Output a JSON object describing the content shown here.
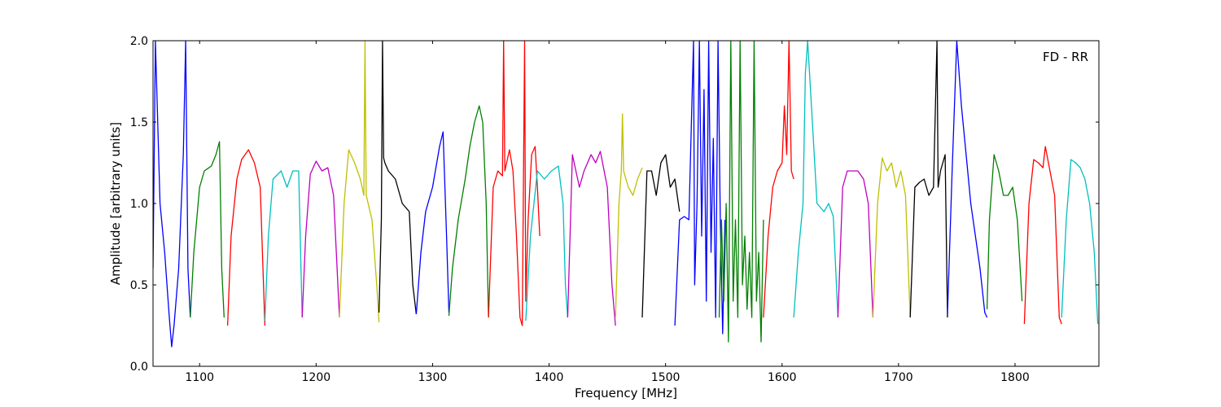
{
  "chart_data": {
    "type": "line",
    "title": "",
    "annotation": "FD - RR",
    "xlabel": "Frequency [MHz]",
    "ylabel": "Amplitude [arbitrary units]",
    "xlim": [
      1060,
      1872
    ],
    "ylim": [
      0.0,
      2.0
    ],
    "xticks": [
      1100,
      1200,
      1300,
      1400,
      1500,
      1600,
      1700,
      1800
    ],
    "yticks": [
      0.0,
      0.5,
      1.0,
      1.5,
      2.0
    ],
    "xtick_labels": [
      "1100",
      "1200",
      "1300",
      "1400",
      "1500",
      "1600",
      "1700",
      "1800"
    ],
    "ytick_labels": [
      "0.0",
      "0.5",
      "1.0",
      "1.5",
      "2.0"
    ],
    "grid": false,
    "colors": {
      "blue": "#0000ff",
      "green": "#008000",
      "red": "#ff0000",
      "cyan": "#00bfbf",
      "magenta": "#bf00bf",
      "yellow": "#bfbf00",
      "black": "#000000",
      "gray": "#bfbfbf"
    },
    "series": [
      {
        "color": "#0000ff",
        "x": [
          1060,
          1062,
          1066,
          1070,
          1074,
          1076,
          1078,
          1082,
          1086,
          1088,
          1090,
          1092
        ],
        "y": [
          0.6,
          2.0,
          1.0,
          0.7,
          0.3,
          0.12,
          0.25,
          0.6,
          1.3,
          2.0,
          0.6,
          0.3
        ]
      },
      {
        "color": "#008000",
        "x": [
          1092,
          1095,
          1100,
          1104,
          1110,
          1114,
          1117,
          1119,
          1121
        ],
        "y": [
          0.3,
          0.7,
          1.1,
          1.2,
          1.23,
          1.3,
          1.38,
          0.6,
          0.3
        ]
      },
      {
        "color": "#ff0000",
        "x": [
          1124,
          1127,
          1132,
          1136,
          1142,
          1147,
          1152,
          1156
        ],
        "y": [
          0.25,
          0.8,
          1.15,
          1.27,
          1.33,
          1.25,
          1.1,
          0.25
        ]
      },
      {
        "color": "#00bfbf",
        "x": [
          1156,
          1159,
          1163,
          1170,
          1175,
          1180,
          1185,
          1188
        ],
        "y": [
          0.28,
          0.8,
          1.15,
          1.2,
          1.1,
          1.2,
          1.2,
          0.3
        ]
      },
      {
        "color": "#bf00bf",
        "x": [
          1188,
          1191,
          1195,
          1200,
          1205,
          1210,
          1215,
          1220
        ],
        "y": [
          0.3,
          0.8,
          1.18,
          1.26,
          1.2,
          1.22,
          1.05,
          0.3
        ]
      },
      {
        "color": "#bfbf00",
        "x": [
          1220,
          1224,
          1228,
          1233,
          1238,
          1241,
          1242,
          1243,
          1248,
          1252,
          1254
        ],
        "y": [
          0.3,
          1.0,
          1.33,
          1.25,
          1.15,
          1.05,
          2.0,
          1.05,
          0.9,
          0.5,
          0.27
        ]
      },
      {
        "color": "#000000",
        "x": [
          1254,
          1256,
          1257,
          1258,
          1259,
          1262,
          1268,
          1274,
          1280,
          1283,
          1286
        ],
        "y": [
          0.33,
          0.9,
          2.0,
          1.28,
          1.25,
          1.2,
          1.15,
          1.0,
          0.95,
          0.5,
          0.32
        ]
      },
      {
        "color": "#0000ff",
        "x": [
          1286,
          1290,
          1294,
          1300,
          1306,
          1309,
          1312,
          1314
        ],
        "y": [
          0.32,
          0.7,
          0.95,
          1.1,
          1.35,
          1.44,
          0.8,
          0.33
        ]
      },
      {
        "color": "#008000",
        "x": [
          1314,
          1317,
          1322,
          1328,
          1332,
          1336,
          1340,
          1343,
          1346,
          1348
        ],
        "y": [
          0.31,
          0.6,
          0.9,
          1.15,
          1.35,
          1.5,
          1.6,
          1.5,
          1.0,
          0.3
        ]
      },
      {
        "color": "#ff0000",
        "x": [
          1348,
          1352,
          1356,
          1360,
          1361,
          1362,
          1366,
          1369,
          1372,
          1375,
          1377,
          1379,
          1380,
          1382,
          1385,
          1388,
          1390,
          1392
        ],
        "y": [
          0.3,
          1.1,
          1.2,
          1.17,
          2.0,
          1.2,
          1.33,
          1.2,
          0.8,
          0.3,
          0.25,
          2.0,
          0.4,
          0.9,
          1.3,
          1.35,
          1.1,
          0.8
        ]
      },
      {
        "color": "#00bfbf",
        "x": [
          1380,
          1384,
          1390,
          1396,
          1402,
          1408,
          1412,
          1414,
          1416
        ],
        "y": [
          0.28,
          0.8,
          1.2,
          1.15,
          1.2,
          1.23,
          1.0,
          0.5,
          0.3
        ]
      },
      {
        "color": "#bf00bf",
        "x": [
          1416,
          1420,
          1423,
          1426,
          1430,
          1436,
          1440,
          1444,
          1450,
          1454,
          1457
        ],
        "y": [
          0.3,
          1.3,
          1.2,
          1.1,
          1.2,
          1.3,
          1.25,
          1.32,
          1.1,
          0.5,
          0.25
        ]
      },
      {
        "color": "#bfbf00",
        "x": [
          1457,
          1460,
          1462,
          1463,
          1464,
          1468,
          1472,
          1476,
          1480
        ],
        "y": [
          0.3,
          1.0,
          1.2,
          1.55,
          1.2,
          1.1,
          1.05,
          1.15,
          1.22
        ]
      },
      {
        "color": "#000000",
        "x": [
          1480,
          1484,
          1488,
          1492,
          1496,
          1500,
          1504,
          1508,
          1512
        ],
        "y": [
          0.3,
          1.2,
          1.2,
          1.05,
          1.25,
          1.3,
          1.1,
          1.15,
          0.95
        ]
      },
      {
        "color": "#0000ff",
        "x": [
          1508,
          1512,
          1516,
          1520,
          1524,
          1525,
          1527,
          1529,
          1531,
          1533,
          1535,
          1537,
          1539,
          1541,
          1543,
          1545,
          1547,
          1549,
          1551
        ],
        "y": [
          0.25,
          0.9,
          0.92,
          0.9,
          2.0,
          0.5,
          1.0,
          2.0,
          0.8,
          1.7,
          0.4,
          2.0,
          0.7,
          1.4,
          0.3,
          2.0,
          0.9,
          0.2,
          0.9
        ]
      },
      {
        "color": "#008000",
        "x": [
          1546,
          1548,
          1550,
          1552,
          1554,
          1556,
          1558,
          1560,
          1562,
          1564,
          1566,
          1568,
          1570,
          1572,
          1574,
          1576,
          1578,
          1580,
          1582,
          1584
        ],
        "y": [
          0.3,
          0.9,
          0.4,
          1.0,
          0.15,
          2.0,
          0.4,
          0.9,
          0.3,
          2.0,
          0.5,
          0.8,
          0.35,
          0.7,
          0.3,
          2.0,
          0.4,
          0.7,
          0.15,
          0.9
        ]
      },
      {
        "color": "#ff0000",
        "x": [
          1584,
          1588,
          1592,
          1596,
          1600,
          1602,
          1604,
          1606,
          1608,
          1610
        ],
        "y": [
          0.3,
          0.8,
          1.1,
          1.2,
          1.25,
          1.6,
          1.3,
          2.0,
          1.2,
          1.15
        ]
      },
      {
        "color": "#00bfbf",
        "x": [
          1610,
          1614,
          1618,
          1620,
          1622,
          1626,
          1630,
          1636,
          1640,
          1644,
          1648
        ],
        "y": [
          0.3,
          0.7,
          1.0,
          1.8,
          2.0,
          1.5,
          1.0,
          0.95,
          1.0,
          0.92,
          0.3
        ]
      },
      {
        "color": "#bf00bf",
        "x": [
          1648,
          1652,
          1656,
          1660,
          1665,
          1670,
          1674,
          1678
        ],
        "y": [
          0.3,
          1.1,
          1.2,
          1.2,
          1.2,
          1.15,
          1.0,
          0.3
        ]
      },
      {
        "color": "#bfbf00",
        "x": [
          1678,
          1682,
          1686,
          1690,
          1694,
          1698,
          1702,
          1706,
          1710
        ],
        "y": [
          0.3,
          1.0,
          1.28,
          1.2,
          1.25,
          1.1,
          1.2,
          1.05,
          0.3
        ]
      },
      {
        "color": "#000000",
        "x": [
          1710,
          1714,
          1718,
          1722,
          1726,
          1730,
          1733,
          1734,
          1736,
          1740,
          1742
        ],
        "y": [
          0.3,
          1.1,
          1.13,
          1.15,
          1.05,
          1.1,
          2.0,
          1.1,
          1.2,
          1.3,
          0.3
        ]
      },
      {
        "color": "#0000ff",
        "x": [
          1742,
          1746,
          1750,
          1754,
          1758,
          1762,
          1766,
          1770,
          1774,
          1776
        ],
        "y": [
          0.32,
          1.2,
          2.0,
          1.6,
          1.3,
          1.0,
          0.8,
          0.6,
          0.33,
          0.3
        ]
      },
      {
        "color": "#008000",
        "x": [
          1776,
          1778,
          1782,
          1786,
          1790,
          1794,
          1798,
          1802,
          1806
        ],
        "y": [
          0.35,
          0.9,
          1.3,
          1.2,
          1.05,
          1.05,
          1.1,
          0.9,
          0.4
        ]
      },
      {
        "color": "#ff0000",
        "x": [
          1808,
          1812,
          1816,
          1820,
          1824,
          1826,
          1830,
          1834,
          1838,
          1840
        ],
        "y": [
          0.26,
          1.0,
          1.27,
          1.25,
          1.22,
          1.35,
          1.2,
          1.05,
          0.3,
          0.26
        ]
      },
      {
        "color": "#00bfbf",
        "x": [
          1840,
          1844,
          1848,
          1852,
          1856,
          1860,
          1864,
          1868,
          1871
        ],
        "y": [
          0.3,
          0.9,
          1.27,
          1.25,
          1.22,
          1.15,
          1.0,
          0.7,
          0.26
        ]
      }
    ]
  }
}
